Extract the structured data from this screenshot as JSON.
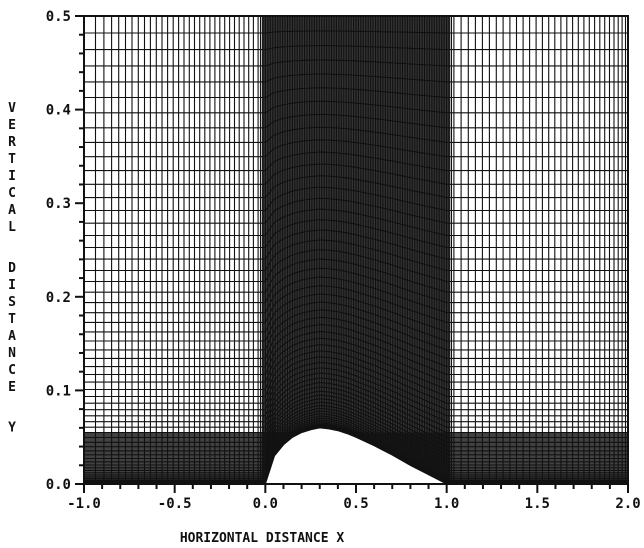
{
  "chart_data": {
    "type": "line",
    "title": "",
    "xlabel": "HORIZONTAL DISTANCE X",
    "ylabel": "VERTICAL DISTANCE Y",
    "xlim": [
      -1.0,
      2.0
    ],
    "ylim": [
      0.0,
      0.5
    ],
    "x_ticks": [
      "-1.0",
      "-0.5",
      "0.0",
      "0.5",
      "1.0",
      "1.5",
      "2.0"
    ],
    "y_ticks": [
      "0.0",
      "0.1",
      "0.2",
      "0.3",
      "0.4",
      "0.5"
    ],
    "grid": false,
    "series": [
      {
        "x": [
          0.0,
          0.05,
          0.1,
          0.15,
          0.2,
          0.25,
          0.3,
          0.35,
          0.4,
          0.45,
          0.5,
          0.6,
          0.7,
          0.8,
          0.9,
          1.0
        ],
        "y": [
          0.0,
          0.03,
          0.042,
          0.05,
          0.055,
          0.058,
          0.06,
          0.059,
          0.057,
          0.054,
          0.05,
          0.041,
          0.031,
          0.02,
          0.01,
          0.0
        ]
      }
    ]
  }
}
